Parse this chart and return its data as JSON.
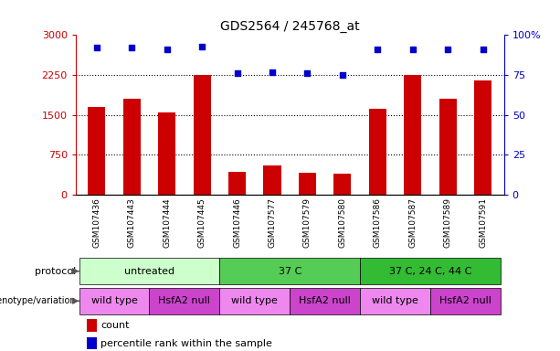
{
  "title": "GDS2564 / 245768_at",
  "samples": [
    "GSM107436",
    "GSM107443",
    "GSM107444",
    "GSM107445",
    "GSM107446",
    "GSM107577",
    "GSM107579",
    "GSM107580",
    "GSM107586",
    "GSM107587",
    "GSM107589",
    "GSM107591"
  ],
  "counts": [
    1650,
    1800,
    1550,
    2250,
    430,
    550,
    420,
    400,
    1620,
    2250,
    1800,
    2150
  ],
  "percentile": [
    92,
    92,
    91,
    93,
    76,
    77,
    76,
    75,
    91,
    91,
    91,
    91
  ],
  "ylim_left": [
    0,
    3000
  ],
  "ylim_right": [
    0,
    100
  ],
  "yticks_left": [
    0,
    750,
    1500,
    2250,
    3000
  ],
  "yticks_right": [
    0,
    25,
    50,
    75,
    100
  ],
  "ytick_labels_right": [
    "0",
    "25",
    "50",
    "75",
    "100%"
  ],
  "gridlines": [
    750,
    1500,
    2250
  ],
  "bar_color": "#cc0000",
  "dot_color": "#0000cc",
  "protocol_groups": [
    {
      "label": "untreated",
      "start": 0,
      "end": 4,
      "color": "#ccffcc"
    },
    {
      "label": "37 C",
      "start": 4,
      "end": 8,
      "color": "#55cc55"
    },
    {
      "label": "37 C, 24 C, 44 C",
      "start": 8,
      "end": 12,
      "color": "#33bb33"
    }
  ],
  "genotype_groups": [
    {
      "label": "wild type",
      "start": 0,
      "end": 2,
      "color": "#ee88ee"
    },
    {
      "label": "HsfA2 null",
      "start": 2,
      "end": 4,
      "color": "#cc44cc"
    },
    {
      "label": "wild type",
      "start": 4,
      "end": 6,
      "color": "#ee88ee"
    },
    {
      "label": "HsfA2 null",
      "start": 6,
      "end": 8,
      "color": "#cc44cc"
    },
    {
      "label": "wild type",
      "start": 8,
      "end": 10,
      "color": "#ee88ee"
    },
    {
      "label": "HsfA2 null",
      "start": 10,
      "end": 12,
      "color": "#cc44cc"
    }
  ],
  "protocol_label": "protocol",
  "genotype_label": "genotype/variation",
  "legend_count_label": "count",
  "legend_percentile_label": "percentile rank within the sample",
  "left_axis_color": "#cc0000",
  "right_axis_color": "#0000cc",
  "bg_color": "#ffffff",
  "xtick_bg_color": "#cccccc",
  "bar_width": 0.5
}
